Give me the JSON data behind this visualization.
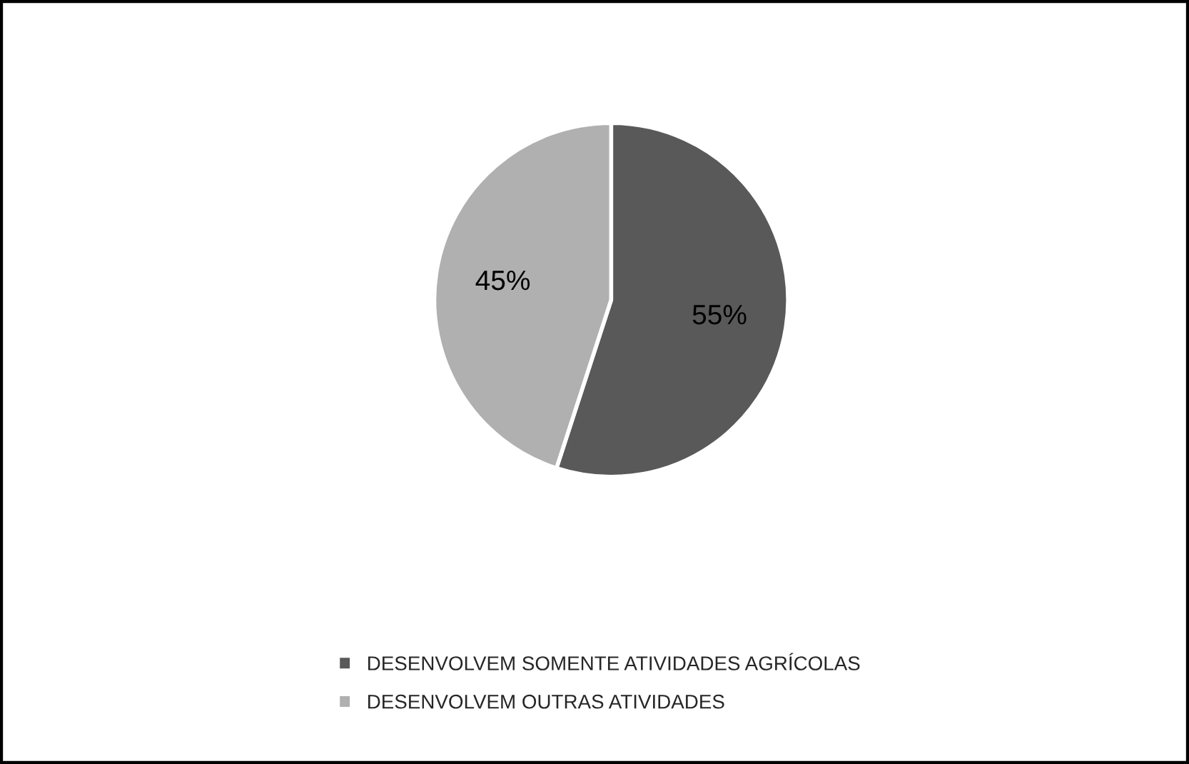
{
  "chart_data": {
    "type": "pie",
    "categories": [
      "DESENVOLVEM SOMENTE ATIVIDADES AGRÍCOLAS",
      "DESENVOLVEM OUTRAS ATIVIDADES"
    ],
    "values": [
      55,
      45
    ],
    "colors": [
      "#595959",
      "#b0b0b0"
    ],
    "value_labels": [
      "55%",
      "45%"
    ],
    "legend": "bottom"
  }
}
